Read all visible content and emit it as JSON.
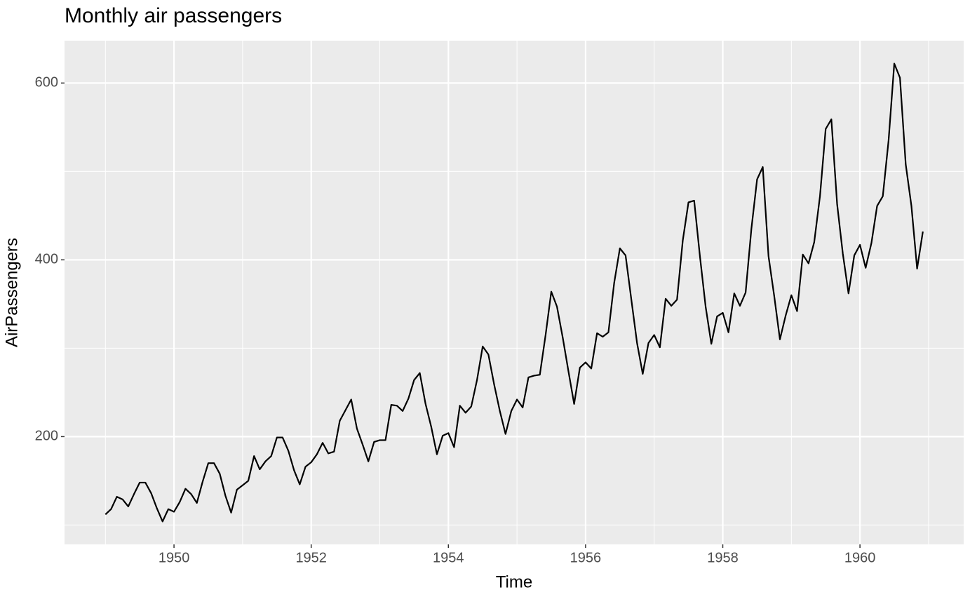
{
  "chart_data": {
    "type": "line",
    "title": "Monthly air passengers",
    "x_label": "Time",
    "y_label": "AirPassengers",
    "color": "#000000",
    "grid": true,
    "x": [
      1949,
      1949.083,
      1949.167,
      1949.25,
      1949.333,
      1949.417,
      1949.5,
      1949.583,
      1949.667,
      1949.75,
      1949.833,
      1949.917,
      1950,
      1950.083,
      1950.167,
      1950.25,
      1950.333,
      1950.417,
      1950.5,
      1950.583,
      1950.667,
      1950.75,
      1950.833,
      1950.917,
      1951,
      1951.083,
      1951.167,
      1951.25,
      1951.333,
      1951.417,
      1951.5,
      1951.583,
      1951.667,
      1951.75,
      1951.833,
      1951.917,
      1952,
      1952.083,
      1952.167,
      1952.25,
      1952.333,
      1952.417,
      1952.5,
      1952.583,
      1952.667,
      1952.75,
      1952.833,
      1952.917,
      1953,
      1953.083,
      1953.167,
      1953.25,
      1953.333,
      1953.417,
      1953.5,
      1953.583,
      1953.667,
      1953.75,
      1953.833,
      1953.917,
      1954,
      1954.083,
      1954.167,
      1954.25,
      1954.333,
      1954.417,
      1954.5,
      1954.583,
      1954.667,
      1954.75,
      1954.833,
      1954.917,
      1955,
      1955.083,
      1955.167,
      1955.25,
      1955.333,
      1955.417,
      1955.5,
      1955.583,
      1955.667,
      1955.75,
      1955.833,
      1955.917,
      1956,
      1956.083,
      1956.167,
      1956.25,
      1956.333,
      1956.417,
      1956.5,
      1956.583,
      1956.667,
      1956.75,
      1956.833,
      1956.917,
      1957,
      1957.083,
      1957.167,
      1957.25,
      1957.333,
      1957.417,
      1957.5,
      1957.583,
      1957.667,
      1957.75,
      1957.833,
      1957.917,
      1958,
      1958.083,
      1958.167,
      1958.25,
      1958.333,
      1958.417,
      1958.5,
      1958.583,
      1958.667,
      1958.75,
      1958.833,
      1958.917,
      1959,
      1959.083,
      1959.167,
      1959.25,
      1959.333,
      1959.417,
      1959.5,
      1959.583,
      1959.667,
      1959.75,
      1959.833,
      1959.917,
      1960,
      1960.083,
      1960.167,
      1960.25,
      1960.333,
      1960.417,
      1960.5,
      1960.583,
      1960.667,
      1960.75,
      1960.833,
      1960.917
    ],
    "values": [
      112,
      118,
      132,
      129,
      121,
      135,
      148,
      148,
      136,
      119,
      104,
      118,
      115,
      126,
      141,
      135,
      125,
      149,
      170,
      170,
      158,
      133,
      114,
      140,
      145,
      150,
      178,
      163,
      172,
      178,
      199,
      199,
      184,
      162,
      146,
      166,
      171,
      180,
      193,
      181,
      183,
      218,
      230,
      242,
      209,
      191,
      172,
      194,
      196,
      196,
      236,
      235,
      229,
      243,
      264,
      272,
      237,
      211,
      180,
      201,
      204,
      188,
      235,
      227,
      234,
      264,
      302,
      293,
      259,
      229,
      203,
      229,
      242,
      233,
      267,
      269,
      270,
      315,
      364,
      347,
      312,
      274,
      237,
      278,
      284,
      277,
      317,
      313,
      318,
      374,
      413,
      405,
      355,
      306,
      271,
      306,
      315,
      301,
      356,
      348,
      355,
      422,
      465,
      467,
      404,
      347,
      305,
      336,
      340,
      318,
      362,
      348,
      363,
      435,
      491,
      505,
      404,
      359,
      310,
      337,
      360,
      342,
      406,
      396,
      420,
      472,
      548,
      559,
      463,
      407,
      362,
      405,
      417,
      391,
      419,
      461,
      472,
      535,
      622,
      606,
      508,
      461,
      390,
      432
    ],
    "xlim": [
      1948.404,
      1961.512
    ],
    "ylim": [
      78.1,
      647.9
    ],
    "xticks": [
      1950,
      1952,
      1954,
      1956,
      1958,
      1960
    ],
    "yticks": [
      200,
      400,
      600
    ],
    "xminor": [
      1949,
      1951,
      1953,
      1955,
      1957,
      1959,
      1961
    ],
    "yminor": [
      100,
      300,
      500
    ]
  }
}
